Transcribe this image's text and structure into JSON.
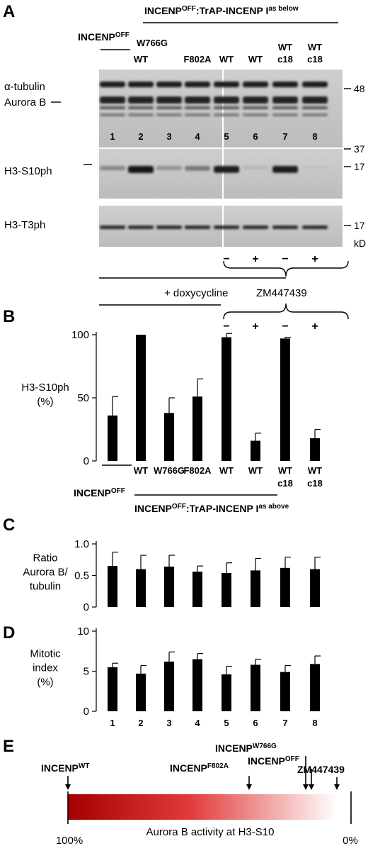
{
  "panels": {
    "A": {
      "letter": "A",
      "header_prefix": "INCENP",
      "header_prefix_sup": "OFF",
      "header_mid": ":TrAP-INCENP I",
      "header_suffix_sup": "as below",
      "left_label": "INCENP",
      "left_label_sup": "OFF",
      "lane_labels": [
        {
          "top": "",
          "bottom": ""
        },
        {
          "top": "W766G",
          "bottom": "WT"
        },
        {
          "top": "",
          "bottom": ""
        },
        {
          "top": "",
          "bottom": "F802A"
        },
        {
          "top": "",
          "bottom": "WT"
        },
        {
          "top": "",
          "bottom": "WT"
        },
        {
          "top": "WT",
          "bottom": "c18"
        },
        {
          "top": "WT",
          "bottom": "c18"
        }
      ],
      "lane_numbers": [
        "1",
        "2",
        "3",
        "4",
        "5",
        "6",
        "7",
        "8"
      ],
      "blot_labels": {
        "tubulin": "α-tubulin",
        "aurora": "Aurora B",
        "h3s10": "H3-S10ph",
        "h3t3": "H3-T3ph"
      },
      "mw_markers": {
        "m48": "48",
        "m37": "37",
        "m17a": "17",
        "m17b": "17",
        "unit": "kD"
      },
      "zm_signs": [
        "−",
        "+",
        "−",
        "+"
      ],
      "dox_label": "+ doxycycline",
      "zm_label": "ZM447439",
      "h3s10_intensity": [
        0.35,
        1.0,
        0.3,
        0.45,
        0.95,
        0.1,
        0.95,
        0.05
      ]
    },
    "B": {
      "letter": "B",
      "signs": [
        "−",
        "+",
        "−",
        "+"
      ],
      "x_labels": [
        {
          "l1": "",
          "l2": ""
        },
        {
          "l1": "WT",
          "l2": ""
        },
        {
          "l1": "W766G",
          "l2": ""
        },
        {
          "l1": "F802A",
          "l2": ""
        },
        {
          "l1": "WT",
          "l2": ""
        },
        {
          "l1": "WT",
          "l2": ""
        },
        {
          "l1": "WT",
          "l2": "c18"
        },
        {
          "l1": "WT",
          "l2": "c18"
        }
      ],
      "left_group": "INCENP",
      "left_group_sup": "OFF",
      "right_group": "INCENP",
      "right_group_sup": "OFF",
      "right_group_mid": ":TrAP-INCENP I",
      "right_group_suffix_sup": "as above"
    },
    "C": {
      "letter": "C"
    },
    "D": {
      "letter": "D"
    },
    "E": {
      "letter": "E",
      "labels": [
        {
          "base": "INCENP",
          "sup": "WT"
        },
        {
          "base": "INCENP",
          "sup": "F802A"
        },
        {
          "base": "INCENP",
          "sup": "W766G"
        },
        {
          "base": "INCENP",
          "sup": "OFF"
        },
        {
          "base": "ZM447439",
          "sup": ""
        }
      ],
      "positions_pct_activity": [
        100,
        36,
        16,
        14,
        5
      ],
      "bar_caption": "Aurora B activity at H3-S10",
      "left_end": "100%",
      "right_end": "0%",
      "gradient_from": "#a40000",
      "gradient_to": "#ffffff"
    }
  },
  "chart_data": [
    {
      "type": "bar",
      "panel": "B",
      "categories": [
        "1",
        "2",
        "3",
        "4",
        "5",
        "6",
        "7",
        "8"
      ],
      "values": [
        36,
        100,
        38,
        51,
        98,
        16,
        97,
        18
      ],
      "errors": [
        15,
        0,
        12,
        14,
        3,
        6,
        1,
        7
      ],
      "ylabel": "H3-S10ph\n(%)",
      "yticks": [
        0,
        50,
        100
      ],
      "ylim": [
        0,
        100
      ]
    },
    {
      "type": "bar",
      "panel": "C",
      "categories": [
        "1",
        "2",
        "3",
        "4",
        "5",
        "6",
        "7",
        "8"
      ],
      "values": [
        0.65,
        0.6,
        0.64,
        0.56,
        0.54,
        0.58,
        0.62,
        0.6
      ],
      "errors": [
        0.22,
        0.22,
        0.18,
        0.09,
        0.16,
        0.19,
        0.17,
        0.19
      ],
      "ylabel": "Ratio\nAurora B/\ntubulin",
      "yticks": [
        0,
        0.5,
        1.0
      ],
      "ytick_labels": [
        "0",
        "0.5",
        "1.0"
      ],
      "ylim": [
        0,
        1.0
      ]
    },
    {
      "type": "bar",
      "panel": "D",
      "categories": [
        "1",
        "2",
        "3",
        "4",
        "5",
        "6",
        "7",
        "8"
      ],
      "values": [
        5.5,
        4.7,
        6.2,
        6.5,
        4.6,
        5.8,
        4.9,
        5.9
      ],
      "errors": [
        0.5,
        1.0,
        1.2,
        0.7,
        1.0,
        0.7,
        0.8,
        1.0
      ],
      "ylabel": "Mitotic\nindex\n(%)",
      "yticks": [
        0,
        5,
        10
      ],
      "ylim": [
        0,
        10
      ],
      "xtick_labels": [
        "1",
        "2",
        "3",
        "4",
        "5",
        "6",
        "7",
        "8"
      ]
    }
  ]
}
